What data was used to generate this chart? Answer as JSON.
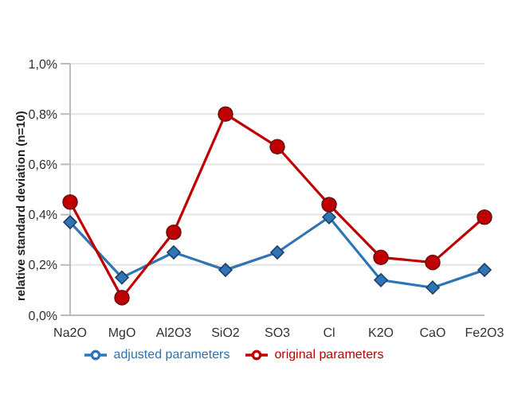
{
  "chart_data": {
    "type": "line",
    "ylabel": "relative standard deviation (n=10)",
    "categories": [
      "Na2O",
      "MgO",
      "Al2O3",
      "SiO2",
      "SO3",
      "Cl",
      "K2O",
      "CaO",
      "Fe2O3"
    ],
    "series": [
      {
        "name": "adjusted parameters",
        "color": "#2e75b6",
        "marker": "diamond",
        "values": [
          0.37,
          0.15,
          0.25,
          0.18,
          0.25,
          0.39,
          0.14,
          0.11,
          0.18
        ]
      },
      {
        "name": "original parameters",
        "color": "#c00000",
        "marker": "circle",
        "values": [
          0.45,
          0.07,
          0.33,
          0.8,
          0.67,
          0.44,
          0.23,
          0.21,
          0.39
        ]
      }
    ],
    "ylim": [
      0,
      1
    ],
    "yticks": [
      {
        "value": 0,
        "label": "0,0%"
      },
      {
        "value": 0.2,
        "label": "0,2%"
      },
      {
        "value": 0.4,
        "label": "0,4%"
      },
      {
        "value": 0.6,
        "label": "0,6%"
      },
      {
        "value": 0.8,
        "label": "0,8%"
      },
      {
        "value": 1,
        "label": "1,0%"
      }
    ],
    "grid": "y",
    "legend": "bottom"
  }
}
